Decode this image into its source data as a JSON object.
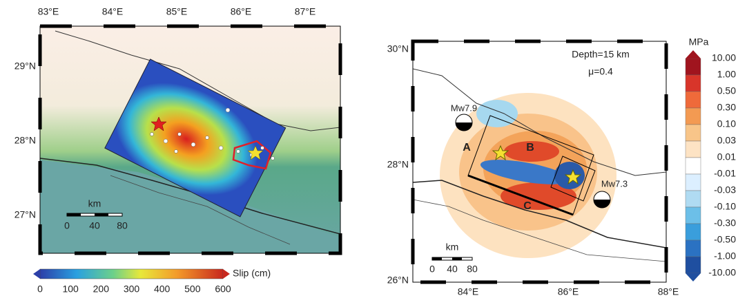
{
  "left_map": {
    "lon_labels": [
      "83°E",
      "84°E",
      "85°E",
      "86°E",
      "87°E"
    ],
    "lat_labels": [
      "29°N",
      "28°N",
      "27°N"
    ],
    "scale_bar": {
      "unit": "km",
      "labels": [
        "0",
        "40",
        "80"
      ]
    },
    "colorbar": {
      "label": "Slip (cm)",
      "ticks": [
        "0",
        "100",
        "200",
        "300",
        "400",
        "500",
        "600"
      ]
    }
  },
  "right_map": {
    "lon_labels": [
      "84°E",
      "86°E",
      "88°E"
    ],
    "lat_labels": [
      "30°N",
      "28°N",
      "26°N"
    ],
    "annotations": [
      "Depth=15 km",
      "μ=0.4"
    ],
    "events": [
      "Mw7.9",
      "Mw7.3"
    ],
    "segment_labels": [
      "A",
      "B",
      "C"
    ],
    "scale_bar": {
      "unit": "km",
      "labels": [
        "0",
        "40",
        "80"
      ]
    },
    "colorbar": {
      "unit": "MPa",
      "ticks": [
        "10.00",
        "1.00",
        "0.50",
        "0.30",
        "0.10",
        "0.03",
        "0.01",
        "-0.01",
        "-0.03",
        "-0.10",
        "-0.30",
        "-0.50",
        "-1.00",
        "-10.00"
      ]
    }
  }
}
